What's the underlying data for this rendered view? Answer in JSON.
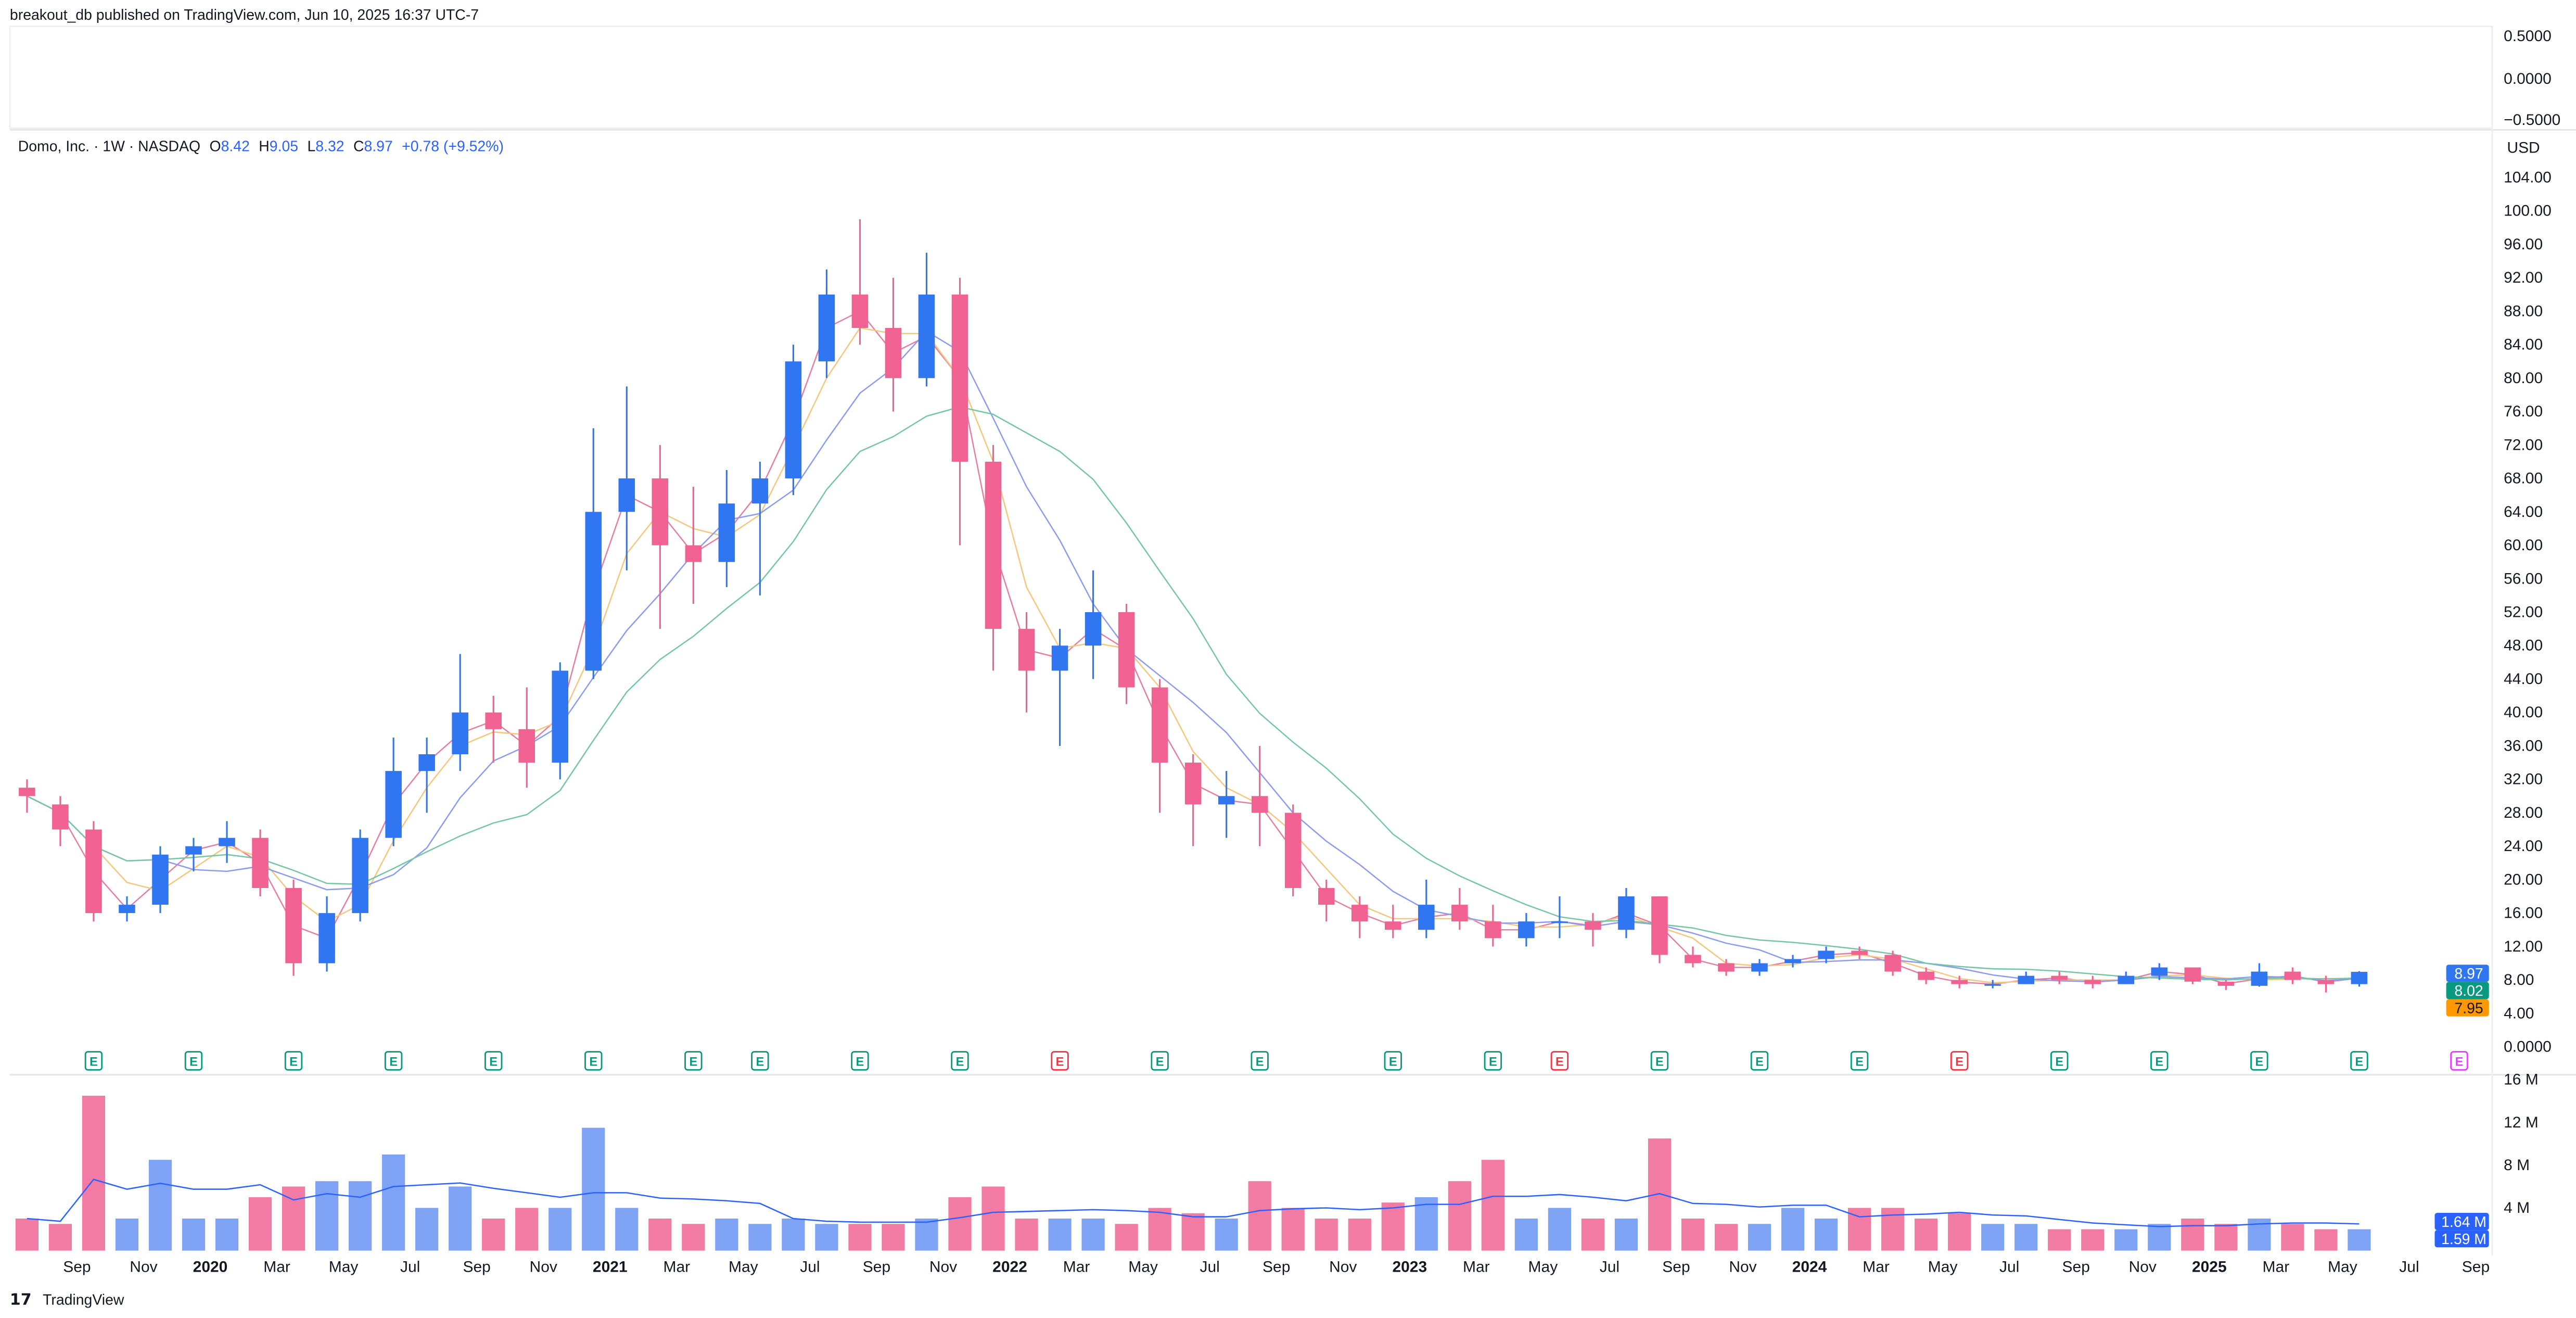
{
  "header": {
    "published": "breakout_db published on TradingView.com, Jun 10, 2025 16:37 UTC-7"
  },
  "legend": {
    "symbol": "Domo, Inc. · 1W · NASDAQ",
    "o_label": "O",
    "o": "8.42",
    "h_label": "H",
    "h": "9.05",
    "l_label": "L",
    "l": "8.32",
    "c_label": "C",
    "c": "8.97",
    "change": "+0.78 (+9.52%)"
  },
  "currency": "USD",
  "top_pane_ticks": [
    "0.5000",
    "0.0000",
    "−0.5000"
  ],
  "price_badges": [
    {
      "text": "8.97",
      "color": "#2f76f0"
    },
    {
      "text": "8.02",
      "color": "#089981"
    },
    {
      "text": "7.95",
      "color": "#ff9800"
    }
  ],
  "volume_badges": [
    {
      "text": "1.64 M",
      "color": "#2962ff"
    },
    {
      "text": "1.59 M",
      "color": "#2962ff"
    }
  ],
  "footer": {
    "brand": "TradingView"
  },
  "colors": {
    "up": "#2f76f0",
    "down": "#f06292",
    "vol_up": "#7ea2f4",
    "vol_down": "#f27ba3",
    "ma1": "#e57ea5",
    "ma2": "#f5c77e",
    "ma3": "#8b9cf0",
    "ma4": "#74c6a6",
    "vol_ma": "#2962ff"
  },
  "chart_data": {
    "type": "candlestick",
    "price_ylim": [
      0,
      104
    ],
    "price_ticks": [
      "104.00",
      "100.00",
      "96.00",
      "92.00",
      "88.00",
      "84.00",
      "80.00",
      "76.00",
      "72.00",
      "68.00",
      "64.00",
      "60.00",
      "56.00",
      "52.00",
      "48.00",
      "44.00",
      "40.00",
      "36.00",
      "32.00",
      "28.00",
      "24.00",
      "20.00",
      "16.00",
      "12.00",
      "8.00",
      "4.00",
      "0.0000"
    ],
    "volume_ylim": [
      0,
      16
    ],
    "volume_ticks": [
      "16 M",
      "12 M",
      "8 M",
      "4 M"
    ],
    "x_ticks": [
      [
        "2019-09",
        "Sep"
      ],
      [
        "2019-11",
        "Nov"
      ],
      [
        "2020-01",
        "2020"
      ],
      [
        "2020-03",
        "Mar"
      ],
      [
        "2020-05",
        "May"
      ],
      [
        "2020-07",
        "Jul"
      ],
      [
        "2020-09",
        "Sep"
      ],
      [
        "2020-11",
        "Nov"
      ],
      [
        "2021-01",
        "2021"
      ],
      [
        "2021-03",
        "Mar"
      ],
      [
        "2021-05",
        "May"
      ],
      [
        "2021-07",
        "Jul"
      ],
      [
        "2021-09",
        "Sep"
      ],
      [
        "2021-11",
        "Nov"
      ],
      [
        "2022-01",
        "2022"
      ],
      [
        "2022-03",
        "Mar"
      ],
      [
        "2022-05",
        "May"
      ],
      [
        "2022-07",
        "Jul"
      ],
      [
        "2022-09",
        "Sep"
      ],
      [
        "2022-11",
        "Nov"
      ],
      [
        "2023-01",
        "2023"
      ],
      [
        "2023-03",
        "Mar"
      ],
      [
        "2023-05",
        "May"
      ],
      [
        "2023-07",
        "Jul"
      ],
      [
        "2023-09",
        "Sep"
      ],
      [
        "2023-11",
        "Nov"
      ],
      [
        "2024-01",
        "2024"
      ],
      [
        "2024-03",
        "Mar"
      ],
      [
        "2024-05",
        "May"
      ],
      [
        "2024-07",
        "Jul"
      ],
      [
        "2024-09",
        "Sep"
      ],
      [
        "2024-11",
        "Nov"
      ],
      [
        "2025-01",
        "2025"
      ],
      [
        "2025-03",
        "Mar"
      ],
      [
        "2025-05",
        "May"
      ],
      [
        "2025-07",
        "Jul"
      ],
      [
        "2025-09",
        "Sep"
      ]
    ],
    "candle_fields": [
      "date",
      "open",
      "high",
      "low",
      "close",
      "volume_M"
    ],
    "candles": [
      [
        "2019-07",
        31,
        32,
        28,
        30,
        3
      ],
      [
        "2019-08",
        29,
        30,
        24,
        26,
        2.5
      ],
      [
        "2019-09",
        26,
        27,
        15,
        16,
        14.5
      ],
      [
        "2019-10",
        16,
        18,
        15,
        17,
        3
      ],
      [
        "2019-11",
        17,
        24,
        16,
        23,
        8.5
      ],
      [
        "2019-12",
        23,
        25,
        21,
        24,
        3
      ],
      [
        "2020-01",
        24,
        27,
        22,
        25,
        3
      ],
      [
        "2020-02",
        25,
        26,
        18,
        19,
        5
      ],
      [
        "2020-03",
        19,
        20,
        8.5,
        10,
        6
      ],
      [
        "2020-04",
        10,
        18,
        9,
        16,
        6.5
      ],
      [
        "2020-05",
        16,
        26,
        15,
        25,
        6.5
      ],
      [
        "2020-06",
        25,
        37,
        24,
        33,
        9
      ],
      [
        "2020-07",
        33,
        37,
        28,
        35,
        4
      ],
      [
        "2020-08",
        35,
        47,
        33,
        40,
        6
      ],
      [
        "2020-09",
        40,
        42,
        34,
        38,
        3
      ],
      [
        "2020-10",
        38,
        43,
        31,
        34,
        4
      ],
      [
        "2020-11",
        34,
        46,
        32,
        45,
        4
      ],
      [
        "2020-12",
        45,
        74,
        44,
        64,
        11.5
      ],
      [
        "2021-01",
        64,
        79,
        57,
        68,
        4
      ],
      [
        "2021-02",
        68,
        72,
        50,
        60,
        3
      ],
      [
        "2021-03",
        60,
        67,
        53,
        58,
        2.5
      ],
      [
        "2021-04",
        58,
        69,
        55,
        65,
        3
      ],
      [
        "2021-05",
        65,
        70,
        54,
        68,
        2.5
      ],
      [
        "2021-06",
        68,
        84,
        66,
        82,
        3
      ],
      [
        "2021-07",
        82,
        93,
        80,
        90,
        2.5
      ],
      [
        "2021-08",
        90,
        99,
        84,
        86,
        2.5
      ],
      [
        "2021-09",
        86,
        92,
        76,
        80,
        2.5
      ],
      [
        "2021-10",
        80,
        95,
        79,
        90,
        3
      ],
      [
        "2021-11",
        90,
        92,
        60,
        70,
        5
      ],
      [
        "2021-12",
        70,
        72,
        45,
        50,
        6
      ],
      [
        "2022-01",
        50,
        52,
        40,
        45,
        3
      ],
      [
        "2022-02",
        45,
        50,
        36,
        48,
        3
      ],
      [
        "2022-03",
        48,
        57,
        44,
        52,
        3
      ],
      [
        "2022-04",
        52,
        53,
        41,
        43,
        2.5
      ],
      [
        "2022-05",
        43,
        44,
        28,
        34,
        4
      ],
      [
        "2022-06",
        34,
        35,
        24,
        29,
        3.5
      ],
      [
        "2022-07",
        29,
        33,
        25,
        30,
        3
      ],
      [
        "2022-08",
        30,
        36,
        24,
        28,
        6.5
      ],
      [
        "2022-09",
        28,
        29,
        18,
        19,
        4
      ],
      [
        "2022-10",
        19,
        20,
        15,
        17,
        3
      ],
      [
        "2022-11",
        17,
        18,
        13,
        15,
        3
      ],
      [
        "2022-12",
        15,
        17,
        13,
        14,
        4.5
      ],
      [
        "2023-01",
        14,
        20,
        13,
        17,
        5
      ],
      [
        "2023-02",
        17,
        19,
        14,
        15,
        6.5
      ],
      [
        "2023-03",
        15,
        17,
        12,
        13,
        8.5
      ],
      [
        "2023-04",
        13,
        16,
        12,
        15,
        3
      ],
      [
        "2023-05",
        15,
        18,
        13,
        15,
        4
      ],
      [
        "2023-06",
        15,
        16,
        12,
        14,
        3
      ],
      [
        "2023-07",
        14,
        19,
        13,
        18,
        3
      ],
      [
        "2023-08",
        18,
        18,
        10,
        11,
        10.5
      ],
      [
        "2023-09",
        11,
        12,
        9.5,
        10,
        3
      ],
      [
        "2023-10",
        10,
        10.5,
        8.5,
        9,
        2.5
      ],
      [
        "2023-11",
        9,
        10.5,
        8.5,
        10,
        2.5
      ],
      [
        "2023-12",
        10,
        11,
        9.5,
        10.5,
        4
      ],
      [
        "2024-01",
        10.5,
        12,
        10,
        11.5,
        3
      ],
      [
        "2024-02",
        11.5,
        12,
        10.5,
        11,
        4
      ],
      [
        "2024-03",
        11,
        11.5,
        8.5,
        9,
        4
      ],
      [
        "2024-04",
        9,
        9.5,
        7.5,
        8,
        3
      ],
      [
        "2024-05",
        8,
        8.5,
        7,
        7.5,
        3.5
      ],
      [
        "2024-06",
        7.5,
        8,
        7,
        7.5,
        2.5
      ],
      [
        "2024-07",
        7.5,
        9,
        7.5,
        8.5,
        2.5
      ],
      [
        "2024-08",
        8.5,
        9,
        7.5,
        8,
        2
      ],
      [
        "2024-09",
        8,
        8.5,
        7,
        7.5,
        2
      ],
      [
        "2024-10",
        7.5,
        9,
        7.5,
        8.5,
        2
      ],
      [
        "2024-11",
        8.5,
        10,
        8,
        9.5,
        2.5
      ],
      [
        "2024-12",
        9.5,
        9.5,
        7.5,
        7.8,
        3
      ],
      [
        "2025-01",
        7.8,
        8,
        6.8,
        7.3,
        2.5
      ],
      [
        "2025-02",
        7.3,
        10,
        7.2,
        9,
        3
      ],
      [
        "2025-03",
        9,
        9.5,
        7.5,
        8,
        2.5
      ],
      [
        "2025-04",
        8,
        8.5,
        6.5,
        7.5,
        2
      ],
      [
        "2025-05",
        7.5,
        9.05,
        7.2,
        8.97,
        2
      ]
    ],
    "earnings": [
      [
        "2019-09",
        "past"
      ],
      [
        "2019-12",
        "past"
      ],
      [
        "2020-03",
        "past"
      ],
      [
        "2020-06",
        "past"
      ],
      [
        "2020-09",
        "past"
      ],
      [
        "2020-12",
        "past"
      ],
      [
        "2021-03",
        "past"
      ],
      [
        "2021-05",
        "past"
      ],
      [
        "2021-08",
        "past"
      ],
      [
        "2021-11",
        "past"
      ],
      [
        "2022-02",
        "miss"
      ],
      [
        "2022-05",
        "past"
      ],
      [
        "2022-08",
        "past"
      ],
      [
        "2022-12",
        "past"
      ],
      [
        "2023-03",
        "past"
      ],
      [
        "2023-05",
        "miss"
      ],
      [
        "2023-08",
        "past"
      ],
      [
        "2023-11",
        "past"
      ],
      [
        "2024-02",
        "past"
      ],
      [
        "2024-05",
        "miss"
      ],
      [
        "2024-08",
        "past"
      ],
      [
        "2024-11",
        "past"
      ],
      [
        "2025-02",
        "past"
      ],
      [
        "2025-05",
        "past"
      ],
      [
        "2025-08",
        "upcoming"
      ]
    ],
    "earnings_label": "E"
  }
}
